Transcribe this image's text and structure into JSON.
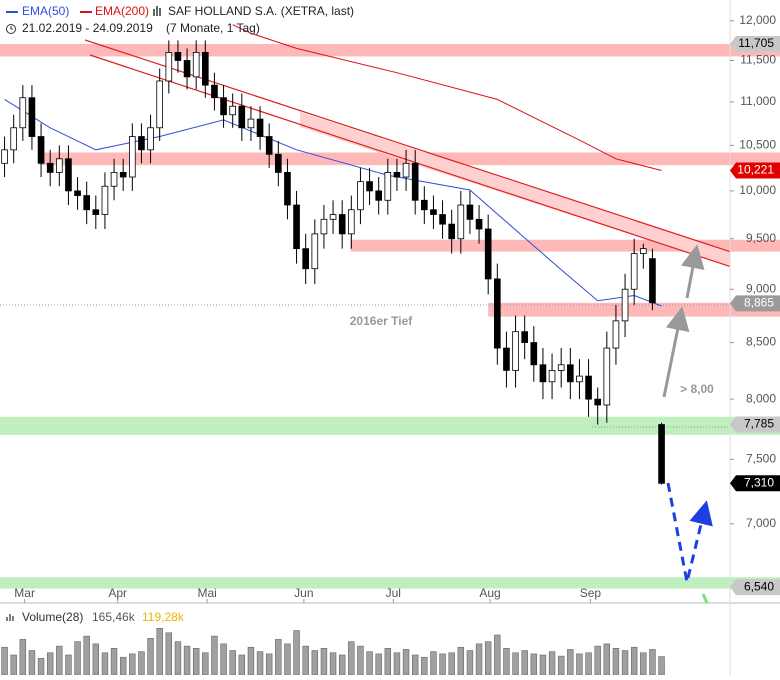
{
  "chart_data": {
    "type": "candlestick",
    "title": "SAF HOLLAND S.A. (XETRA, last)",
    "date_range": "21.02.2019 - 24.09.2019",
    "period": "(7 Monate, 1 Tag)",
    "log_scale": true,
    "xlim": [
      -0.5,
      79.5
    ],
    "xticks": [
      {
        "value": 2.2,
        "label": "Mar"
      },
      {
        "value": 12.4,
        "label": "Apr"
      },
      {
        "value": 22.2,
        "label": "Mai"
      },
      {
        "value": 32.8,
        "label": "Jun"
      },
      {
        "value": 42.6,
        "label": "Jul"
      },
      {
        "value": 53.2,
        "label": "Aug"
      },
      {
        "value": 64.2,
        "label": "Sep"
      }
    ],
    "ylim": [
      6430,
      12270
    ],
    "yticks": [
      {
        "value": 7000,
        "label": "7,000"
      },
      {
        "value": 7500,
        "label": "7,500"
      },
      {
        "value": 8000,
        "label": "8,000"
      },
      {
        "value": 8500,
        "label": "8,500"
      },
      {
        "value": 9000,
        "label": "9,000"
      },
      {
        "value": 9500,
        "label": "9,500"
      },
      {
        "value": 10000,
        "label": "10,000"
      },
      {
        "value": 10500,
        "label": "10,500"
      },
      {
        "value": 11000,
        "label": "11,000"
      },
      {
        "value": 11500,
        "label": "11,500"
      },
      {
        "value": 12000,
        "label": "12,000"
      }
    ],
    "open": [
      10300,
      10450,
      10700,
      11050,
      10600,
      10300,
      10200,
      10350,
      10000,
      9950,
      9800,
      9750,
      10050,
      10200,
      10150,
      10600,
      10450,
      10700,
      11250,
      11600,
      11500,
      11300,
      11600,
      11200,
      11050,
      10850,
      10950,
      10700,
      10800,
      10600,
      10400,
      10200,
      9850,
      9400,
      9200,
      9550,
      9700,
      9750,
      9550,
      9800,
      10100,
      10000,
      9900,
      10200,
      10150,
      10300,
      9900,
      9800,
      9750,
      9650,
      9500,
      9850,
      9700,
      9600,
      9100,
      8450,
      8250,
      8600,
      8500,
      8300,
      8150,
      8250,
      8300,
      8150,
      8200,
      8000,
      7950,
      8450,
      8700,
      9000,
      9350,
      9300,
      7785
    ],
    "high": [
      10600,
      10850,
      11200,
      11200,
      10750,
      10450,
      10500,
      10500,
      10150,
      10100,
      9950,
      10200,
      10350,
      10350,
      10750,
      10750,
      10850,
      11400,
      11750,
      11750,
      11650,
      11750,
      11750,
      11350,
      11200,
      11100,
      11100,
      10950,
      10950,
      10750,
      10550,
      10350,
      10000,
      9550,
      9700,
      9850,
      9900,
      9900,
      9950,
      10250,
      10250,
      10150,
      10350,
      10350,
      10450,
      10450,
      10050,
      9950,
      9900,
      9800,
      10000,
      10000,
      9850,
      9750,
      9250,
      8600,
      8750,
      8750,
      8650,
      8450,
      8400,
      8450,
      8450,
      8350,
      8350,
      8100,
      8600,
      8850,
      9150,
      9500,
      9450,
      9400,
      7800
    ],
    "low": [
      10150,
      10300,
      10550,
      10450,
      10150,
      10050,
      10050,
      9850,
      9800,
      9650,
      9600,
      9600,
      9900,
      10000,
      10000,
      10300,
      10300,
      10550,
      11100,
      11350,
      11150,
      11150,
      11050,
      10900,
      10700,
      10700,
      10550,
      10550,
      10450,
      10250,
      10050,
      9700,
      9250,
      9050,
      9050,
      9400,
      9550,
      9400,
      9400,
      9650,
      9850,
      9750,
      9750,
      10000,
      10000,
      9750,
      9650,
      9600,
      9500,
      9350,
      9350,
      9550,
      9450,
      8950,
      8300,
      8100,
      8100,
      8350,
      8150,
      8000,
      8000,
      8100,
      8000,
      8000,
      7850,
      7785,
      7800,
      8300,
      8550,
      8850,
      9200,
      8800,
      7300
    ],
    "close": [
      10450,
      10700,
      11050,
      10600,
      10300,
      10200,
      10350,
      10000,
      9950,
      9800,
      9750,
      10050,
      10200,
      10150,
      10600,
      10450,
      10700,
      11250,
      11600,
      11500,
      11300,
      11600,
      11200,
      11050,
      10850,
      10950,
      10700,
      10800,
      10600,
      10400,
      10200,
      9850,
      9400,
      9200,
      9550,
      9700,
      9750,
      9550,
      9800,
      10100,
      10000,
      9900,
      10200,
      10150,
      10300,
      9900,
      9800,
      9750,
      9650,
      9500,
      9850,
      9700,
      9600,
      9100,
      8450,
      8250,
      8600,
      8500,
      8300,
      8150,
      8250,
      8300,
      8150,
      8200,
      8000,
      7950,
      8450,
      8700,
      9000,
      9350,
      9400,
      8870,
      7310
    ],
    "series": [
      {
        "name": "EMA(50)",
        "color": "#2f4fd8",
        "x": [
          0,
          5,
          10,
          17,
          24,
          32,
          42,
          51,
          56,
          61,
          65,
          69,
          72
        ],
        "values": [
          11030,
          10700,
          10450,
          10600,
          10790,
          10450,
          10170,
          10010,
          9590,
          9190,
          8890,
          8940,
          8840
        ]
      },
      {
        "name": "EMA(200)",
        "color": "#e01010",
        "x": [
          25,
          27,
          32,
          43,
          54,
          63,
          67,
          72
        ],
        "values": [
          11950,
          11840,
          11650,
          11350,
          11030,
          10560,
          10350,
          10221
        ]
      }
    ],
    "zones": [
      {
        "from": 11550,
        "to": 11705,
        "start": -0.5,
        "color": "#ffb8b8"
      },
      {
        "from": 10280,
        "to": 10420,
        "start": 3.9,
        "color": "#ffb8b8"
      },
      {
        "from": 9370,
        "to": 9490,
        "start": 37.9,
        "color": "#ffb8b8"
      },
      {
        "from": 8740,
        "to": 8870,
        "start": 53.0,
        "color": "#ffb8b8"
      },
      {
        "from": 7700,
        "to": 7850,
        "start": -0.5,
        "color": "#bfeebf"
      },
      {
        "from": 6530,
        "to": 6610,
        "start": -0.5,
        "color": "#bfeebf"
      }
    ],
    "price_labels": [
      {
        "value": 11705,
        "label": "11,705",
        "color": "#c8c8c8",
        "text_color": "#000000"
      },
      {
        "value": 10221,
        "label": "10,221",
        "color": "#e00000",
        "text_color": "#ffffff"
      },
      {
        "value": 8865,
        "label": "8,865",
        "color": "#9a9a9a",
        "text_color": "#ffffff"
      },
      {
        "value": 7785,
        "label": "7,785",
        "color": "#c8c8c8",
        "text_color": "#000000"
      },
      {
        "value": 7310,
        "label": "7,310",
        "color": "#000000",
        "text_color": "#ffffff"
      },
      {
        "value": 6540,
        "label": "6,540",
        "color": "#c8c8c8",
        "text_color": "#000000"
      }
    ],
    "annotations": [
      "2016er Tief",
      "> 8,00"
    ],
    "volume": {
      "name": "Volume(28)",
      "last_label": "165,46k",
      "average_label": "119,28k",
      "color": "#a0a0a0",
      "ylim": [
        0,
        450
      ],
      "values": [
        250,
        180,
        320,
        220,
        150,
        200,
        260,
        180,
        300,
        350,
        280,
        200,
        240,
        160,
        190,
        210,
        330,
        420,
        380,
        300,
        260,
        240,
        200,
        350,
        280,
        220,
        180,
        250,
        210,
        190,
        320,
        280,
        400,
        260,
        220,
        240,
        200,
        180,
        300,
        260,
        210,
        190,
        240,
        200,
        230,
        180,
        160,
        210,
        190,
        200,
        250,
        220,
        280,
        300,
        360,
        240,
        200,
        220,
        190,
        180,
        210,
        170,
        230,
        190,
        200,
        260,
        280,
        240,
        220,
        250,
        200,
        230,
        165.46
      ]
    }
  }
}
